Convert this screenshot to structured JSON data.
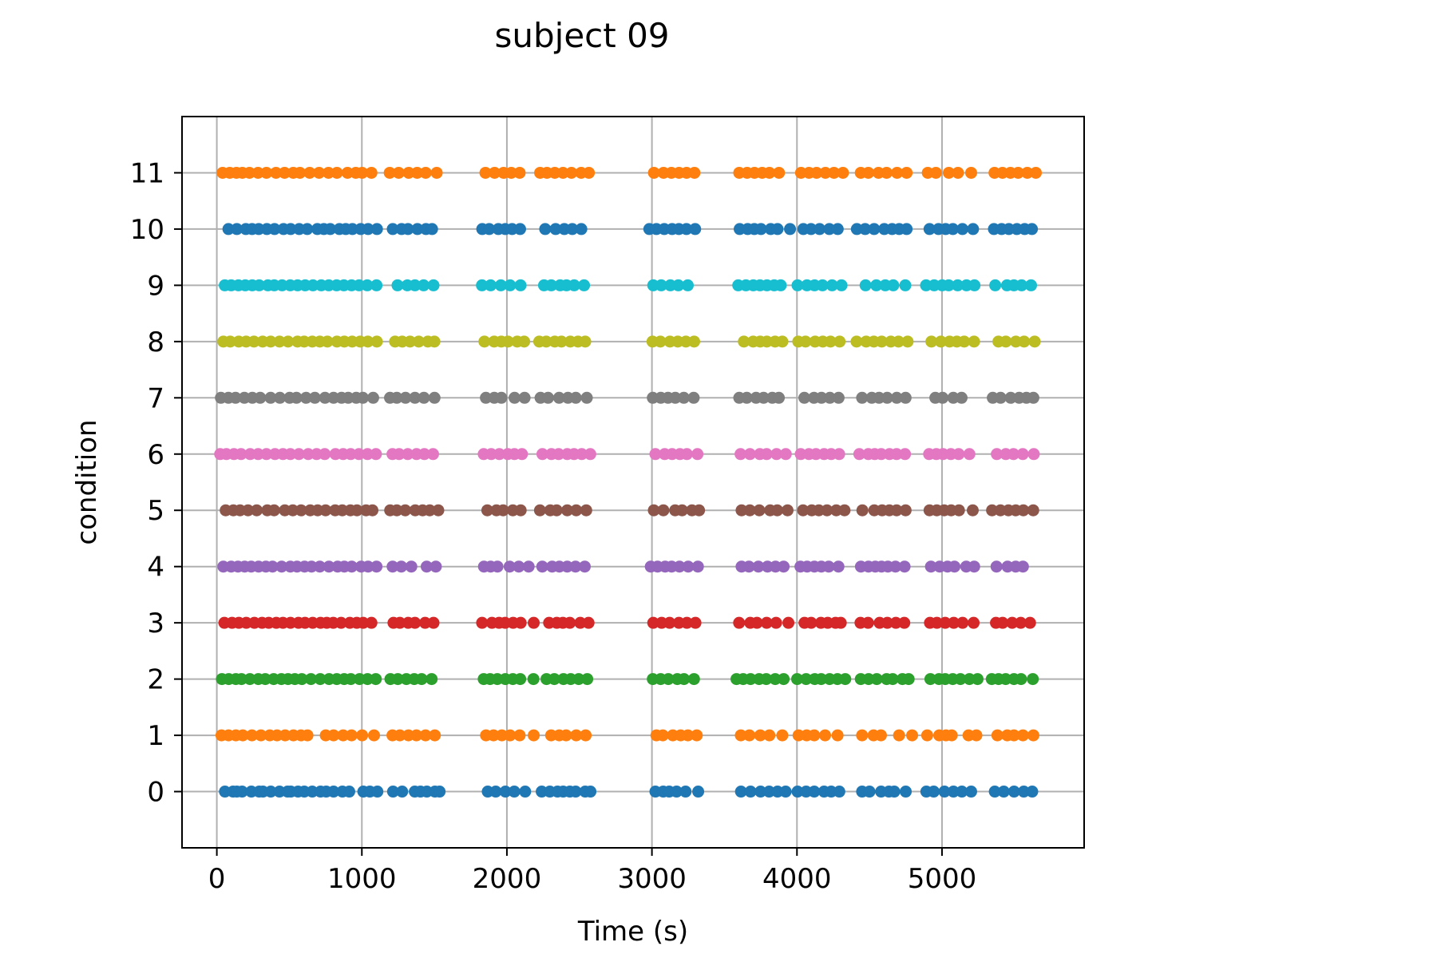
{
  "chart_data": {
    "type": "scatter",
    "title": "subject 09",
    "xlabel": "Time (s)",
    "ylabel": "condition",
    "xlim": [
      -240,
      5980
    ],
    "ylim": [
      -1,
      12
    ],
    "x_ticks": [
      0,
      1000,
      2000,
      3000,
      4000,
      5000
    ],
    "x_tick_labels": [
      "0",
      "1000",
      "2000",
      "3000",
      "4000",
      "5000"
    ],
    "y_ticks": [
      0,
      1,
      2,
      3,
      4,
      5,
      6,
      7,
      8,
      9,
      10,
      11
    ],
    "y_tick_labels": [
      "0",
      "1",
      "2",
      "3",
      "4",
      "5",
      "6",
      "7",
      "8",
      "9",
      "10",
      "11"
    ],
    "grid": true,
    "series": [
      {
        "color": "#1f77b4",
        "y": 0,
        "x": [
          56,
          112,
          138,
          174,
          238,
          292,
          318,
          372,
          432,
          488,
          510,
          560,
          603,
          658,
          715,
          754,
          805,
          866,
          913,
          1010,
          1055,
          1107,
          1215,
          1278,
          1365,
          1404,
          1448,
          1504,
          1536,
          1868,
          1923,
          1990,
          2051,
          2126,
          2240,
          2296,
          2349,
          2388,
          2434,
          2474,
          2540,
          2576,
          3024,
          3078,
          3119,
          3170,
          3232,
          3319,
          3614,
          3680,
          3749,
          3808,
          3866,
          3922,
          4004,
          4063,
          4119,
          4187,
          4236,
          4292,
          4449,
          4500,
          4580,
          4634,
          4671,
          4750,
          4892,
          4943,
          5017,
          5079,
          5137,
          5201,
          5364,
          5426,
          5497,
          5564,
          5622
        ]
      },
      {
        "color": "#ff7f0e",
        "y": 1,
        "x": [
          32,
          81,
          131,
          179,
          242,
          304,
          365,
          415,
          471,
          528,
          580,
          625,
          751,
          805,
          871,
          929,
          1002,
          1084,
          1211,
          1262,
          1321,
          1376,
          1439,
          1503,
          1856,
          1908,
          1965,
          2022,
          2088,
          2185,
          2305,
          2361,
          2408,
          2478,
          2543,
          3031,
          3075,
          3144,
          3198,
          3248,
          3309,
          3613,
          3672,
          3747,
          3810,
          3899,
          4011,
          4067,
          4119,
          4194,
          4280,
          4449,
          4528,
          4579,
          4704,
          4794,
          4898,
          4981,
          5027,
          5067,
          5183,
          5237,
          5382,
          5450,
          5496,
          5558,
          5630
        ]
      },
      {
        "color": "#2ca02c",
        "y": 2,
        "x": [
          35,
          82,
          131,
          170,
          228,
          286,
          334,
          392,
          445,
          491,
          538,
          586,
          649,
          713,
          774,
          827,
          878,
          924,
          984,
          1039,
          1096,
          1197,
          1248,
          1307,
          1361,
          1412,
          1481,
          1840,
          1884,
          1934,
          1989,
          2041,
          2092,
          2183,
          2273,
          2327,
          2390,
          2440,
          2495,
          2554,
          3006,
          3060,
          3113,
          3175,
          3221,
          3290,
          3583,
          3629,
          3680,
          3739,
          3788,
          3850,
          3908,
          4001,
          4063,
          4122,
          4167,
          4225,
          4279,
          4333,
          4440,
          4494,
          4550,
          4618,
          4660,
          4727,
          4770,
          4920,
          4979,
          5022,
          5074,
          5127,
          5189,
          5245,
          5343,
          5390,
          5439,
          5496,
          5545,
          5626
        ]
      },
      {
        "color": "#d62728",
        "y": 3,
        "x": [
          52,
          105,
          152,
          203,
          259,
          312,
          358,
          410,
          456,
          508,
          563,
          608,
          661,
          715,
          758,
          803,
          857,
          917,
          965,
          1009,
          1066,
          1218,
          1262,
          1319,
          1366,
          1436,
          1494,
          1829,
          1897,
          1946,
          1988,
          2043,
          2095,
          2185,
          2291,
          2344,
          2386,
          2434,
          2506,
          2563,
          3009,
          3067,
          3122,
          3186,
          3241,
          3300,
          3601,
          3678,
          3724,
          3791,
          3856,
          3941,
          4052,
          4098,
          4165,
          4212,
          4266,
          4302,
          4438,
          4490,
          4570,
          4623,
          4682,
          4740,
          4917,
          4965,
          5022,
          5081,
          5142,
          5218,
          5372,
          5418,
          5484,
          5543,
          5607
        ]
      },
      {
        "color": "#9467bd",
        "y": 4,
        "x": [
          45,
          99,
          146,
          192,
          237,
          288,
          338,
          384,
          447,
          507,
          553,
          605,
          653,
          710,
          773,
          833,
          879,
          930,
          995,
          1043,
          1101,
          1212,
          1272,
          1341,
          1447,
          1510,
          1842,
          1888,
          1935,
          2019,
          2082,
          2150,
          2244,
          2312,
          2362,
          2416,
          2473,
          2537,
          2992,
          3039,
          3091,
          3136,
          3190,
          3250,
          3317,
          3618,
          3669,
          3734,
          3797,
          3852,
          3908,
          4024,
          4070,
          4120,
          4168,
          4219,
          4286,
          4441,
          4493,
          4540,
          4583,
          4627,
          4679,
          4742,
          4924,
          4984,
          5038,
          5086,
          5167,
          5222,
          5376,
          5452,
          5508,
          5558
        ]
      },
      {
        "color": "#8c564b",
        "y": 5,
        "x": [
          61,
          114,
          160,
          215,
          275,
          348,
          395,
          469,
          524,
          581,
          644,
          695,
          750,
          816,
          865,
          921,
          966,
          1029,
          1073,
          1195,
          1241,
          1299,
          1368,
          1419,
          1468,
          1527,
          1865,
          1928,
          1974,
          2041,
          2095,
          2228,
          2299,
          2343,
          2416,
          2478,
          2547,
          3013,
          3079,
          3160,
          3208,
          3276,
          3325,
          3618,
          3675,
          3740,
          3815,
          3864,
          3935,
          4042,
          4102,
          4151,
          4207,
          4271,
          4328,
          4451,
          4533,
          4587,
          4637,
          4687,
          4749,
          4914,
          4964,
          5015,
          5063,
          5117,
          5212,
          5345,
          5403,
          5458,
          5508,
          5561,
          5629
        ]
      },
      {
        "color": "#e377c2",
        "y": 6,
        "x": [
          23,
          66,
          118,
          167,
          230,
          285,
          342,
          401,
          456,
          507,
          566,
          630,
          688,
          744,
          818,
          871,
          923,
          980,
          1039,
          1097,
          1211,
          1257,
          1316,
          1377,
          1431,
          1491,
          1840,
          1892,
          1948,
          2006,
          2052,
          2104,
          2245,
          2307,
          2357,
          2416,
          2463,
          2516,
          2575,
          3024,
          3088,
          3139,
          3193,
          3241,
          3314,
          3611,
          3676,
          3744,
          3791,
          3859,
          3923,
          4026,
          4083,
          4131,
          4187,
          4236,
          4291,
          4430,
          4492,
          4536,
          4581,
          4638,
          4687,
          4745,
          4911,
          4961,
          5007,
          5061,
          5115,
          5189,
          5378,
          5440,
          5493,
          5557,
          5633
        ]
      },
      {
        "color": "#7f7f7f",
        "y": 7,
        "x": [
          28,
          80,
          129,
          190,
          245,
          299,
          371,
          435,
          502,
          549,
          615,
          676,
          746,
          805,
          860,
          906,
          961,
          1007,
          1078,
          1194,
          1241,
          1301,
          1366,
          1428,
          1501,
          1855,
          1913,
          1962,
          2053,
          2122,
          2232,
          2284,
          2360,
          2421,
          2475,
          2551,
          3006,
          3061,
          3111,
          3161,
          3220,
          3288,
          3602,
          3654,
          3718,
          3770,
          3830,
          3875,
          4051,
          4117,
          4169,
          4227,
          4287,
          4449,
          4516,
          4566,
          4622,
          4688,
          4749,
          4954,
          5004,
          5078,
          5135,
          5350,
          5404,
          5474,
          5532,
          5582,
          5630
        ]
      },
      {
        "color": "#bcbd22",
        "y": 8,
        "x": [
          45,
          92,
          151,
          202,
          256,
          316,
          371,
          432,
          491,
          556,
          602,
          658,
          710,
          762,
          828,
          879,
          933,
          988,
          1041,
          1103,
          1229,
          1278,
          1332,
          1392,
          1455,
          1500,
          1845,
          1912,
          1961,
          2007,
          2071,
          2119,
          2223,
          2271,
          2330,
          2376,
          2437,
          2490,
          2540,
          3004,
          3058,
          3124,
          3178,
          3234,
          3291,
          3634,
          3698,
          3746,
          3792,
          3849,
          3899,
          4009,
          4059,
          4125,
          4178,
          4231,
          4294,
          4411,
          4477,
          4530,
          4584,
          4647,
          4700,
          4763,
          4927,
          4992,
          5052,
          5102,
          5153,
          5221,
          5389,
          5440,
          5509,
          5566,
          5639
        ]
      },
      {
        "color": "#17becf",
        "y": 9,
        "x": [
          55,
          99,
          149,
          196,
          244,
          292,
          352,
          396,
          450,
          506,
          557,
          609,
          663,
          720,
          772,
          826,
          876,
          929,
          981,
          1037,
          1101,
          1246,
          1313,
          1366,
          1426,
          1494,
          1828,
          1888,
          1958,
          2022,
          2094,
          2256,
          2306,
          2367,
          2411,
          2464,
          2532,
          3009,
          3064,
          3127,
          3182,
          3247,
          3595,
          3648,
          3699,
          3745,
          3793,
          3843,
          3888,
          4004,
          4069,
          4121,
          4176,
          4242,
          4307,
          4473,
          4547,
          4609,
          4664,
          4747,
          4890,
          4946,
          5001,
          5046,
          5108,
          5169,
          5224,
          5367,
          5448,
          5496,
          5549,
          5614
        ]
      },
      {
        "color": "#1f77b4",
        "y": 10,
        "x": [
          80,
          138,
          200,
          243,
          289,
          345,
          398,
          460,
          509,
          568,
          623,
          693,
          738,
          782,
          845,
          889,
          935,
          992,
          1043,
          1104,
          1213,
          1274,
          1318,
          1383,
          1442,
          1484,
          1830,
          1878,
          1941,
          1989,
          2036,
          2091,
          2264,
          2336,
          2396,
          2451,
          2513,
          2982,
          3031,
          3085,
          3139,
          3186,
          3238,
          3298,
          3605,
          3660,
          3706,
          3752,
          3819,
          3866,
          3952,
          4044,
          4097,
          4156,
          4223,
          4281,
          4413,
          4470,
          4532,
          4602,
          4656,
          4705,
          4756,
          4914,
          4976,
          5025,
          5075,
          5141,
          5214,
          5358,
          5411,
          5461,
          5516,
          5570,
          5620
        ]
      },
      {
        "color": "#ff7f0e",
        "y": 11,
        "x": [
          40,
          89,
          135,
          176,
          225,
          284,
          342,
          408,
          467,
          527,
          573,
          640,
          705,
          770,
          828,
          901,
          958,
          1002,
          1066,
          1192,
          1254,
          1323,
          1381,
          1440,
          1516,
          1852,
          1915,
          1977,
          2030,
          2088,
          2229,
          2276,
          2330,
          2387,
          2445,
          2512,
          2565,
          3014,
          3080,
          3134,
          3187,
          3239,
          3293,
          3602,
          3656,
          3707,
          3760,
          3810,
          3876,
          4028,
          4083,
          4135,
          4196,
          4255,
          4317,
          4440,
          4492,
          4562,
          4618,
          4690,
          4756,
          4902,
          4958,
          5047,
          5110,
          5201,
          5362,
          5417,
          5472,
          5525,
          5588,
          5647
        ]
      }
    ]
  }
}
